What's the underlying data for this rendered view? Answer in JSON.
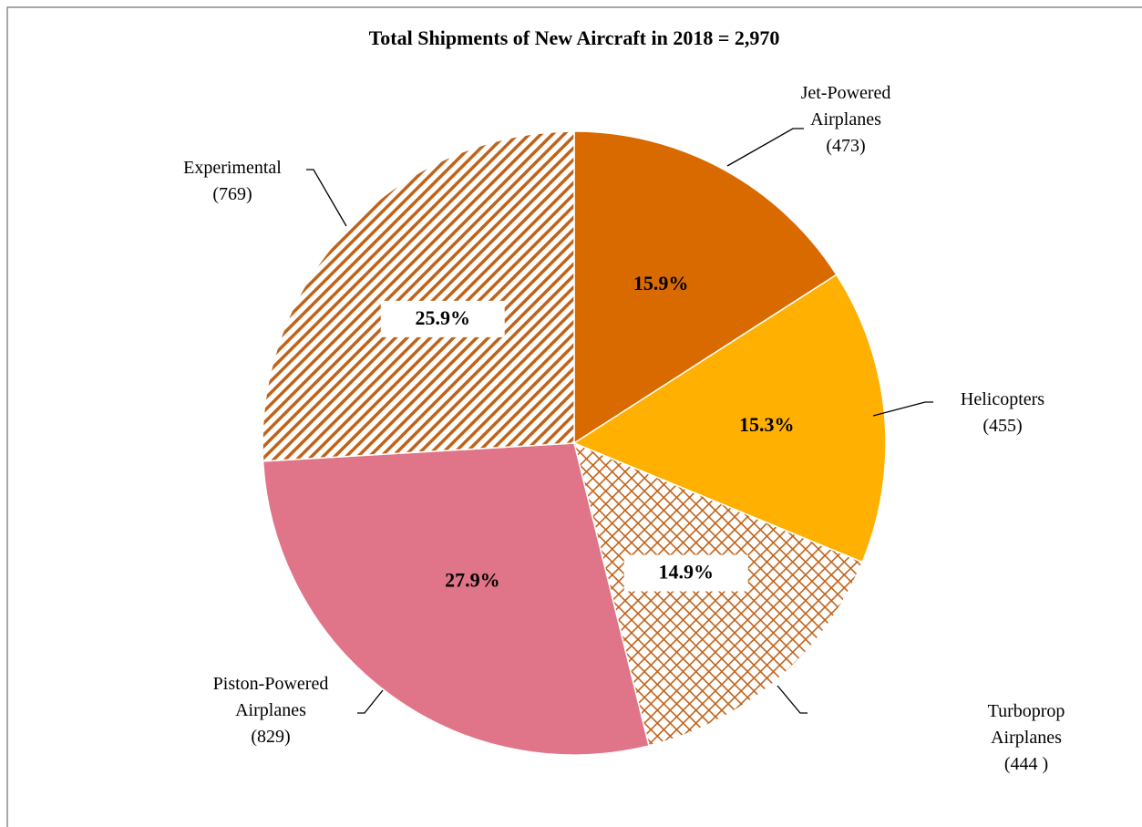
{
  "chart_data": {
    "type": "pie",
    "title": "Total Shipments of New Aircraft in 2018 = 2,970",
    "categories": [
      "Jet-Powered Airplanes",
      "Helicopters",
      "Turboprop Airplanes",
      "Piston-Powered Airplanes",
      "Experimental"
    ],
    "values": [
      15.9,
      15.3,
      14.9,
      27.9,
      25.9
    ],
    "value_labels": [
      "15.9%",
      "15.3%",
      "14.9%",
      "27.9%",
      "25.9%"
    ],
    "count_labels": [
      "(473)",
      "(455)",
      "(444 )",
      "(829)",
      "(769)"
    ],
    "colors": [
      "#d96a00",
      "#ffb000",
      "#c0631a",
      "#e07488",
      "#c0631a"
    ],
    "fills": [
      "solid",
      "solid",
      "crosshatch",
      "solid",
      "stripes"
    ],
    "start_angle": 0,
    "direction": "clockwise"
  }
}
